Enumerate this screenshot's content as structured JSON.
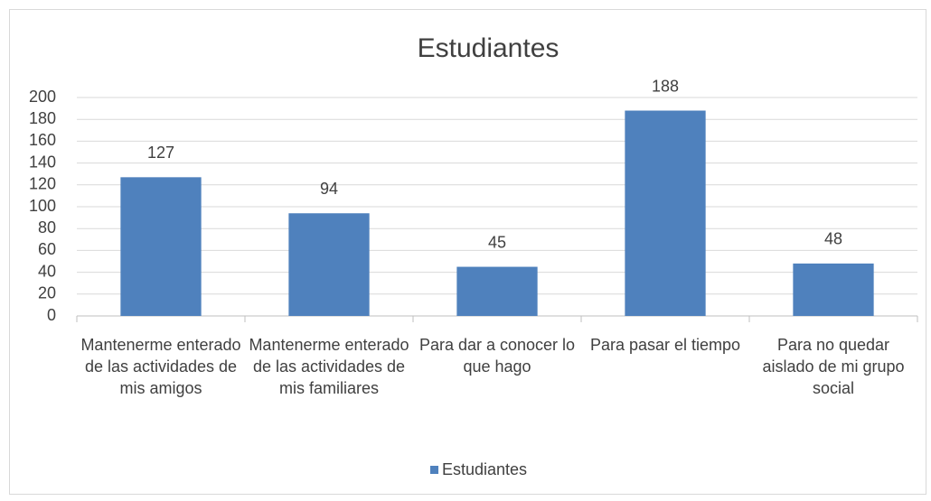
{
  "chart_data": {
    "type": "bar",
    "title": "Estudiantes",
    "categories": [
      "Mantenerme enterado de las actividades de mis amigos",
      "Mantenerme enterado de las actividades de mis familiares",
      "Para dar a conocer lo que hago",
      "Para pasar el tiempo",
      "Para no quedar aislado de mi grupo social"
    ],
    "series": [
      {
        "name": "Estudiantes",
        "color": "#4f81bd",
        "values": [
          127,
          94,
          45,
          188,
          48
        ]
      }
    ],
    "ylim": [
      0,
      200
    ],
    "yticks": [
      0,
      20,
      40,
      60,
      80,
      100,
      120,
      140,
      160,
      180,
      200
    ],
    "grid": true,
    "legend": "bottom"
  }
}
